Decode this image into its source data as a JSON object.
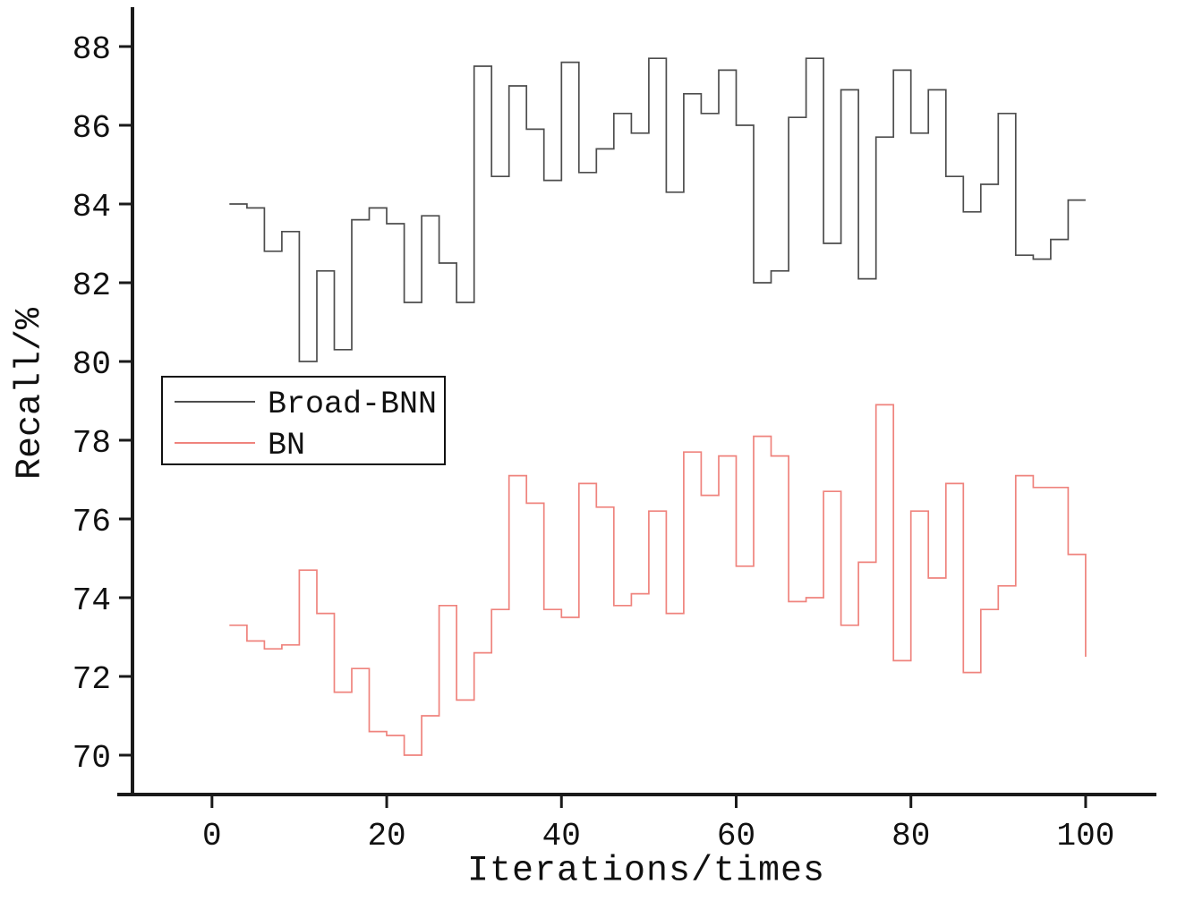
{
  "chart_data": {
    "type": "line",
    "style": "step-post",
    "title": "",
    "xlabel": "Iterations/times",
    "ylabel": "Recall/%",
    "xlim": [
      -9.1,
      108.1
    ],
    "ylim": [
      69,
      89
    ],
    "xticks": [
      0,
      20,
      40,
      60,
      80,
      100
    ],
    "yticks": [
      70,
      72,
      74,
      76,
      78,
      80,
      82,
      84,
      86,
      88
    ],
    "grid": false,
    "legend_position": "center-left",
    "axis_color": "#1a1a1a",
    "x": [
      2,
      4,
      6,
      8,
      10,
      12,
      14,
      16,
      18,
      20,
      22,
      24,
      26,
      28,
      30,
      32,
      34,
      36,
      38,
      40,
      42,
      44,
      46,
      48,
      50,
      52,
      54,
      56,
      58,
      60,
      62,
      64,
      66,
      68,
      70,
      72,
      74,
      76,
      78,
      80,
      82,
      84,
      86,
      88,
      90,
      92,
      94,
      96,
      98,
      100
    ],
    "series": [
      {
        "name": "Broad-BNN",
        "color": "#4d4d4d",
        "values": [
          84.0,
          83.9,
          82.8,
          83.3,
          80.0,
          82.3,
          80.3,
          83.6,
          83.9,
          83.5,
          81.5,
          83.7,
          82.5,
          81.5,
          87.5,
          84.7,
          87.0,
          85.9,
          84.6,
          87.6,
          84.8,
          85.4,
          86.3,
          85.8,
          87.7,
          84.3,
          86.8,
          86.3,
          87.4,
          86.0,
          82.0,
          82.3,
          86.2,
          87.7,
          83.0,
          86.9,
          82.1,
          85.7,
          87.4,
          85.8,
          86.9,
          84.7,
          83.8,
          84.5,
          86.3,
          82.7,
          82.6,
          83.1,
          84.1,
          84.1
        ]
      },
      {
        "name": "BN",
        "color": "#ef837d",
        "values": [
          73.3,
          72.9,
          72.7,
          72.8,
          74.7,
          73.6,
          71.6,
          72.2,
          70.6,
          70.5,
          70.0,
          71.0,
          73.8,
          71.4,
          72.6,
          73.7,
          77.1,
          76.4,
          73.7,
          73.5,
          76.9,
          76.3,
          73.8,
          74.1,
          76.2,
          73.6,
          77.7,
          76.6,
          77.6,
          74.8,
          78.1,
          77.6,
          73.9,
          74.0,
          76.7,
          73.3,
          74.9,
          78.9,
          72.4,
          76.2,
          74.5,
          76.9,
          72.1,
          73.7,
          74.3,
          77.1,
          76.8,
          76.8,
          75.1,
          72.5
        ]
      }
    ]
  }
}
